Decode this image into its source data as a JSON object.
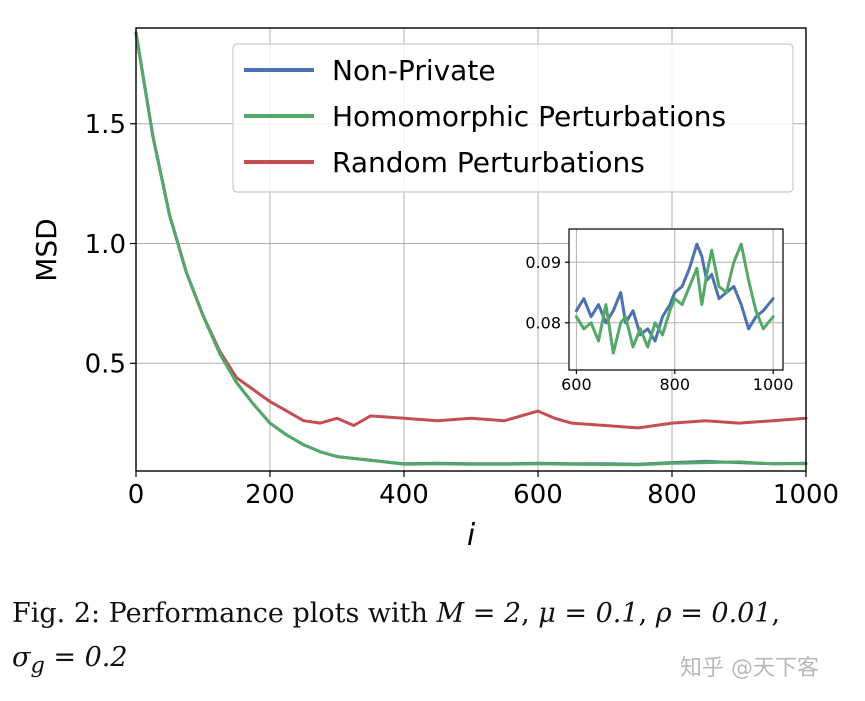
{
  "chart_data": [
    {
      "type": "line",
      "xlabel": "i",
      "ylabel": "MSD",
      "xlim": [
        0,
        1000
      ],
      "ylim": [
        0.05,
        1.9
      ],
      "xticks": [
        "0",
        "200",
        "400",
        "600",
        "800",
        "1000"
      ],
      "yticks": [
        "0.5",
        "1.0",
        "1.5"
      ],
      "grid": true,
      "legend": "top-right",
      "series": [
        {
          "name": "Non-Private",
          "color": "#4c72b0",
          "x": [
            0,
            25,
            50,
            75,
            100,
            125,
            150,
            175,
            200,
            225,
            250,
            275,
            300,
            350,
            400,
            450,
            500,
            550,
            600,
            650,
            700,
            750,
            800,
            850,
            900,
            950,
            1000
          ],
          "y": [
            1.88,
            1.45,
            1.12,
            0.88,
            0.7,
            0.54,
            0.42,
            0.33,
            0.25,
            0.2,
            0.16,
            0.13,
            0.11,
            0.095,
            0.08,
            0.082,
            0.08,
            0.08,
            0.082,
            0.08,
            0.08,
            0.078,
            0.085,
            0.09,
            0.085,
            0.08,
            0.082
          ]
        },
        {
          "name": "Homomorphic Perturbations",
          "color": "#55a868",
          "x": [
            0,
            25,
            50,
            75,
            100,
            125,
            150,
            175,
            200,
            225,
            250,
            275,
            300,
            350,
            400,
            450,
            500,
            550,
            600,
            650,
            700,
            750,
            800,
            850,
            900,
            950,
            1000
          ],
          "y": [
            1.88,
            1.45,
            1.12,
            0.88,
            0.7,
            0.54,
            0.42,
            0.33,
            0.25,
            0.2,
            0.16,
            0.13,
            0.11,
            0.095,
            0.078,
            0.08,
            0.078,
            0.078,
            0.08,
            0.078,
            0.077,
            0.076,
            0.082,
            0.085,
            0.088,
            0.08,
            0.08
          ]
        },
        {
          "name": "Random Perturbations",
          "color": "#c44e52",
          "x": [
            0,
            25,
            50,
            75,
            100,
            125,
            150,
            200,
            225,
            250,
            275,
            300,
            325,
            350,
            400,
            450,
            500,
            550,
            600,
            625,
            650,
            700,
            750,
            800,
            850,
            900,
            950,
            1000
          ],
          "y": [
            1.88,
            1.45,
            1.12,
            0.88,
            0.7,
            0.55,
            0.44,
            0.34,
            0.3,
            0.26,
            0.25,
            0.27,
            0.24,
            0.28,
            0.27,
            0.26,
            0.27,
            0.26,
            0.3,
            0.27,
            0.25,
            0.24,
            0.23,
            0.25,
            0.26,
            0.25,
            0.26,
            0.27
          ]
        }
      ]
    },
    {
      "type": "line",
      "inset": true,
      "xlim": [
        585,
        1020
      ],
      "ylim": [
        0.0722,
        0.0955
      ],
      "xticks": [
        "600",
        "800",
        "1000"
      ],
      "yticks": [
        "0.08",
        "0.09"
      ],
      "grid": true,
      "series": [
        {
          "name": "Non-Private",
          "color": "#4c72b0",
          "x": [
            600,
            615,
            630,
            645,
            660,
            675,
            690,
            700,
            715,
            730,
            745,
            760,
            775,
            790,
            800,
            815,
            830,
            845,
            855,
            865,
            875,
            890,
            905,
            920,
            935,
            950,
            965,
            980,
            1000
          ],
          "y": [
            0.082,
            0.084,
            0.081,
            0.083,
            0.08,
            0.082,
            0.085,
            0.08,
            0.082,
            0.078,
            0.079,
            0.077,
            0.081,
            0.083,
            0.085,
            0.086,
            0.089,
            0.093,
            0.091,
            0.087,
            0.088,
            0.084,
            0.085,
            0.086,
            0.083,
            0.079,
            0.081,
            0.082,
            0.084
          ]
        },
        {
          "name": "Homomorphic Perturbations",
          "color": "#55a868",
          "x": [
            600,
            615,
            630,
            645,
            660,
            675,
            690,
            700,
            715,
            730,
            745,
            760,
            775,
            790,
            800,
            815,
            830,
            845,
            855,
            865,
            875,
            890,
            905,
            920,
            935,
            950,
            965,
            980,
            1000
          ],
          "y": [
            0.081,
            0.079,
            0.08,
            0.077,
            0.083,
            0.075,
            0.08,
            0.081,
            0.076,
            0.079,
            0.076,
            0.08,
            0.078,
            0.082,
            0.084,
            0.083,
            0.086,
            0.089,
            0.083,
            0.088,
            0.092,
            0.086,
            0.085,
            0.09,
            0.093,
            0.087,
            0.082,
            0.079,
            0.081
          ]
        }
      ]
    }
  ],
  "caption": {
    "prefix": "Fig. 2: Performance plots with ",
    "m_eq": "M = 2",
    "sep1": ", ",
    "mu_eq": "μ = 0.1",
    "sep2": ", ",
    "rho_eq": "ρ = 0.01",
    "sep3": ",",
    "sigma_eq": "σ",
    "sigma_sub": "g",
    "sigma_val": " = 0.2"
  },
  "watermark": "知乎 @天下客"
}
